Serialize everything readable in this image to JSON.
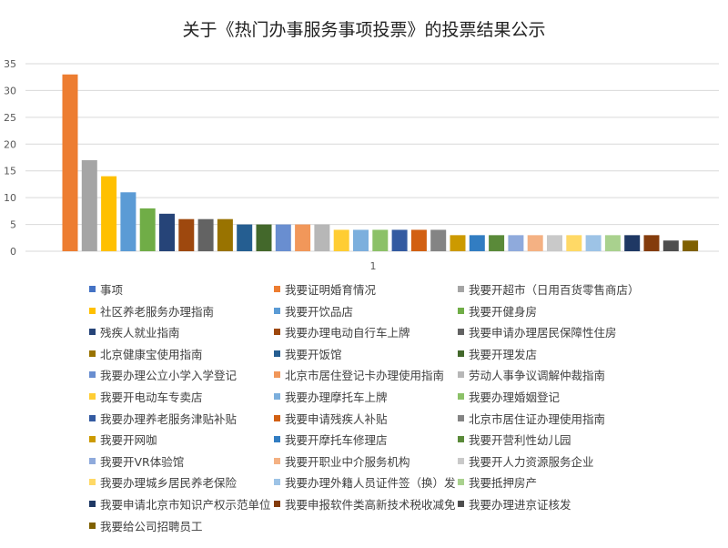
{
  "chart_data": {
    "type": "bar",
    "title": "关于《热门办事服务事项投票》的投票结果公示",
    "xlabel": "",
    "ylabel": "",
    "ylim": [
      0,
      35
    ],
    "yticks": [
      0,
      5,
      10,
      15,
      20,
      25,
      30,
      35
    ],
    "categories": [
      "1"
    ],
    "grid": true,
    "legend_position": "bottom",
    "series": [
      {
        "name": "事项",
        "values": [
          null
        ],
        "color": "#4472C4"
      },
      {
        "name": "我要证明婚育情况",
        "values": [
          33
        ],
        "color": "#ED7D31"
      },
      {
        "name": "我要开超市（日用百货零售商店）",
        "values": [
          17
        ],
        "color": "#A5A5A5"
      },
      {
        "name": "社区养老服务办理指南",
        "values": [
          14
        ],
        "color": "#FFC000"
      },
      {
        "name": "我要开饮品店",
        "values": [
          11
        ],
        "color": "#5B9BD5"
      },
      {
        "name": "我要开健身房",
        "values": [
          8
        ],
        "color": "#70AD47"
      },
      {
        "name": "残疾人就业指南",
        "values": [
          7
        ],
        "color": "#264478"
      },
      {
        "name": "我要办理电动自行车上牌",
        "values": [
          6
        ],
        "color": "#9E480E"
      },
      {
        "name": "我要申请办理居民保障性住房",
        "values": [
          6
        ],
        "color": "#636363"
      },
      {
        "name": "北京健康宝使用指南",
        "values": [
          6
        ],
        "color": "#997300"
      },
      {
        "name": "我要开饭馆",
        "values": [
          5
        ],
        "color": "#255E91"
      },
      {
        "name": "我要开理发店",
        "values": [
          5
        ],
        "color": "#43682B"
      },
      {
        "name": "我要办理公立小学入学登记",
        "values": [
          5
        ],
        "color": "#698ED0"
      },
      {
        "name": "北京市居住登记卡办理使用指南",
        "values": [
          5
        ],
        "color": "#F1975A"
      },
      {
        "name": "劳动人事争议调解仲裁指南",
        "values": [
          5
        ],
        "color": "#B7B7B7"
      },
      {
        "name": "我要开电动车专卖店",
        "values": [
          4
        ],
        "color": "#FFCD33"
      },
      {
        "name": "我要办理摩托车上牌",
        "values": [
          4
        ],
        "color": "#7CAFDD"
      },
      {
        "name": "我要办理婚姻登记",
        "values": [
          4
        ],
        "color": "#8CC168"
      },
      {
        "name": "我要办理养老服务津贴补贴",
        "values": [
          4
        ],
        "color": "#335AA1"
      },
      {
        "name": "我要申请残疾人补贴",
        "values": [
          4
        ],
        "color": "#D26012"
      },
      {
        "name": "北京市居住证办理使用指南",
        "values": [
          4
        ],
        "color": "#848484"
      },
      {
        "name": "我要开网咖",
        "values": [
          3
        ],
        "color": "#CC9A00"
      },
      {
        "name": "我要开摩托车修理店",
        "values": [
          3
        ],
        "color": "#327DC2"
      },
      {
        "name": "我要开营利性幼儿园",
        "values": [
          3
        ],
        "color": "#5A8A39"
      },
      {
        "name": "我要开VR体验馆",
        "values": [
          3
        ],
        "color": "#8FAADC"
      },
      {
        "name": "我要开职业中介服务机构",
        "values": [
          3
        ],
        "color": "#F4B183"
      },
      {
        "name": "我要开人力资源服务企业",
        "values": [
          3
        ],
        "color": "#C9C9C9"
      },
      {
        "name": "我要办理城乡居民养老保险",
        "values": [
          3
        ],
        "color": "#FFD966"
      },
      {
        "name": "我要办理外籍人员证件签（换）发",
        "values": [
          3
        ],
        "color": "#9DC3E6"
      },
      {
        "name": "我要抵押房产",
        "values": [
          3
        ],
        "color": "#A9D18E"
      },
      {
        "name": "我要申请北京市知识产权示范单位",
        "values": [
          3
        ],
        "color": "#1F3864"
      },
      {
        "name": "我要申报软件类高新技术税收减免",
        "values": [
          3
        ],
        "color": "#843C0C"
      },
      {
        "name": "我要办理进京证核发",
        "values": [
          2
        ],
        "color": "#4E4E4E"
      },
      {
        "name": "我要给公司招聘员工",
        "values": [
          2
        ],
        "color": "#7F6000"
      }
    ]
  }
}
